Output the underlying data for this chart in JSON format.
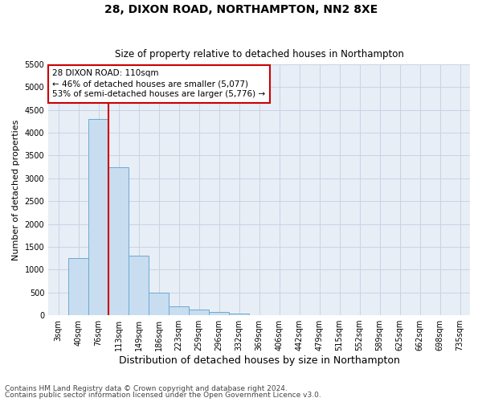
{
  "title1": "28, DIXON ROAD, NORTHAMPTON, NN2 8XE",
  "title2": "Size of property relative to detached houses in Northampton",
  "xlabel": "Distribution of detached houses by size in Northampton",
  "ylabel": "Number of detached properties",
  "footnote1": "Contains HM Land Registry data © Crown copyright and database right 2024.",
  "footnote2": "Contains public sector information licensed under the Open Government Licence v3.0.",
  "categories": [
    "3sqm",
    "40sqm",
    "76sqm",
    "113sqm",
    "149sqm",
    "186sqm",
    "223sqm",
    "259sqm",
    "296sqm",
    "332sqm",
    "369sqm",
    "406sqm",
    "442sqm",
    "479sqm",
    "515sqm",
    "552sqm",
    "589sqm",
    "625sqm",
    "662sqm",
    "698sqm",
    "735sqm"
  ],
  "values": [
    0,
    1250,
    4300,
    3250,
    1300,
    500,
    200,
    120,
    80,
    30,
    0,
    0,
    0,
    0,
    0,
    0,
    0,
    0,
    0,
    0,
    0
  ],
  "bar_color": "#c8ddf0",
  "bar_edge_color": "#6aaad4",
  "vline_x": 2.5,
  "vline_color": "#cc0000",
  "ylim_max": 5500,
  "yticks": [
    0,
    500,
    1000,
    1500,
    2000,
    2500,
    3000,
    3500,
    4000,
    4500,
    5000,
    5500
  ],
  "annotation_line1": "28 DIXON ROAD: 110sqm",
  "annotation_line2": "← 46% of detached houses are smaller (5,077)",
  "annotation_line3": "53% of semi-detached houses are larger (5,776) →",
  "annotation_box_edge_color": "#cc0000",
  "grid_color": "#c8d4e4",
  "bg_color": "#e8eef6",
  "title1_fontsize": 10,
  "title2_fontsize": 8.5,
  "ylabel_fontsize": 8,
  "xlabel_fontsize": 9,
  "tick_fontsize": 7,
  "footnote_fontsize": 6.5
}
